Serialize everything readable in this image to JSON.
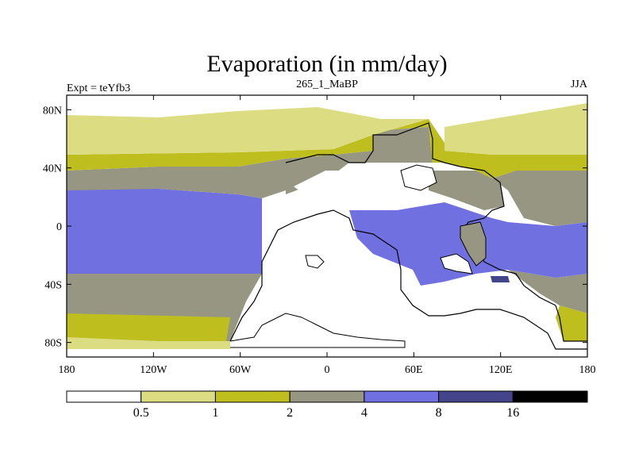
{
  "title": "Evaporation (in mm/day)",
  "subtitle_left": "Expt = teYfb3",
  "subtitle_center": "265_1_MaBP",
  "subtitle_right": "JJA",
  "lat_labels": [
    "80N",
    "40N",
    "0",
    "40S",
    "80S"
  ],
  "lon_labels": [
    "180",
    "120W",
    "60W",
    "0",
    "60E",
    "120E",
    "180"
  ],
  "colorbar": {
    "colors": [
      "#ffffff",
      "#dcdc82",
      "#bebe1e",
      "#969682",
      "#7070e0",
      "#44448c",
      "#000000"
    ],
    "labels": [
      "0.5",
      "1",
      "2",
      "4",
      "8",
      "16"
    ]
  },
  "chart_data": {
    "type": "heatmap",
    "variable": "Evaporation",
    "units": "mm/day",
    "season": "JJA",
    "experiment": "teYfb3",
    "period": "265_1_MaBP",
    "levels": [
      0.5,
      1,
      2,
      4,
      8,
      16
    ],
    "xlim": [
      -180,
      180
    ],
    "ylim": [
      -90,
      90
    ]
  }
}
